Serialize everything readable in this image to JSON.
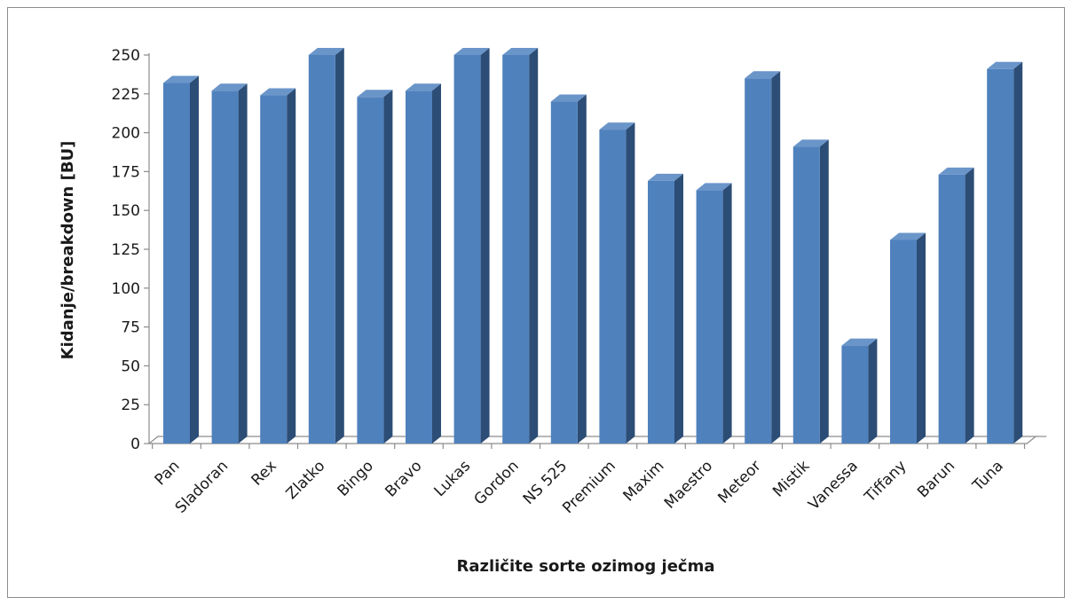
{
  "chart_data": {
    "type": "bar",
    "title": "",
    "xlabel": "Različite sorte ozimog ječma",
    "ylabel": "Kidanje/breakdown [BU]",
    "ylim": [
      0,
      250
    ],
    "y_ticks": [
      0,
      25,
      50,
      75,
      100,
      125,
      150,
      175,
      200,
      225,
      250
    ],
    "categories": [
      "Pan",
      "Sladoran",
      "Rex",
      "Zlatko",
      "Bingo",
      "Bravo",
      "Lukas",
      "Gordon",
      "NS 525",
      "Premium",
      "Maxim",
      "Maestro",
      "Meteor",
      "Mistik",
      "Vanessa",
      "Tiffany",
      "Barun",
      "Tuna"
    ],
    "values": [
      232,
      227,
      224,
      250,
      223,
      227,
      250,
      250,
      220,
      202,
      169,
      163,
      235,
      191,
      63,
      131,
      173,
      241
    ],
    "grid": false,
    "legend": "none",
    "colors": {
      "bar_front": "#4f81bd",
      "bar_side": "#2c4d75",
      "bar_top": "#6a95c9",
      "axis": "#8c8c8c"
    }
  }
}
